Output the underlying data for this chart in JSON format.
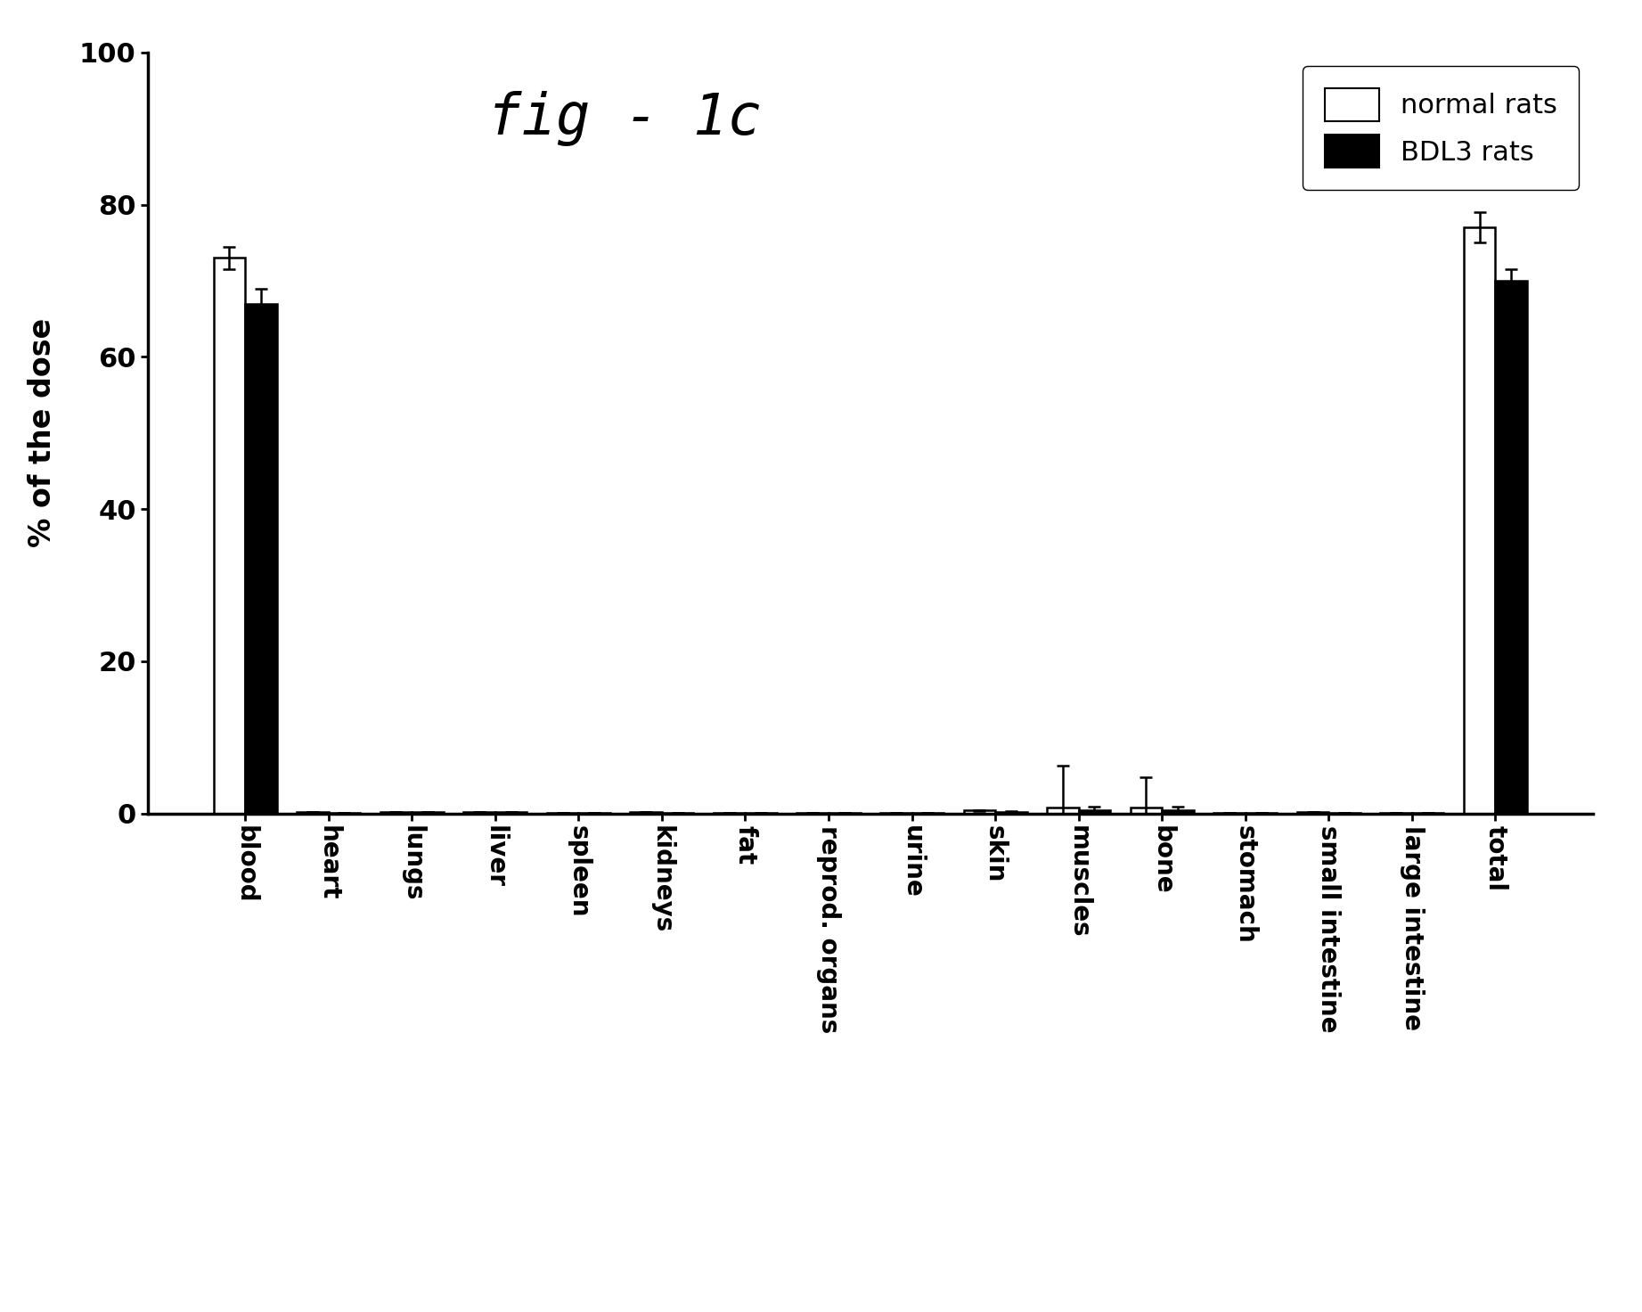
{
  "categories": [
    "blood",
    "heart",
    "lungs",
    "liver",
    "spleen",
    "kidneys",
    "fat",
    "reprod. organs",
    "urine",
    "skin",
    "muscles",
    "bone",
    "stomach",
    "small intestine",
    "large intestine",
    "total"
  ],
  "normal_rats": [
    73.0,
    0.15,
    0.2,
    0.2,
    0.1,
    0.15,
    0.1,
    0.1,
    0.1,
    0.4,
    0.8,
    0.8,
    0.1,
    0.15,
    0.1,
    77.0
  ],
  "bdl3_rats": [
    67.0,
    0.1,
    0.15,
    0.15,
    0.08,
    0.1,
    0.08,
    0.08,
    0.08,
    0.25,
    0.4,
    0.4,
    0.08,
    0.1,
    0.08,
    70.0
  ],
  "normal_err": [
    1.5,
    0.0,
    0.0,
    0.0,
    0.0,
    0.0,
    0.0,
    0.0,
    0.0,
    0.05,
    5.5,
    4.0,
    0.0,
    0.0,
    0.0,
    2.0
  ],
  "bdl3_err": [
    2.0,
    0.0,
    0.0,
    0.0,
    0.0,
    0.0,
    0.0,
    0.0,
    0.0,
    0.05,
    0.5,
    0.5,
    0.0,
    0.0,
    0.0,
    1.5
  ],
  "ylabel": "% of the dose",
  "ylim": [
    0,
    100
  ],
  "yticks": [
    0,
    20,
    40,
    60,
    80,
    100
  ],
  "legend_normal": "normal rats",
  "legend_bdl3": "BDL3 rats",
  "title": "fig - 1c",
  "bar_width": 0.38,
  "normal_color": "white",
  "bdl3_color": "black",
  "edge_color": "black",
  "background_color": "white"
}
